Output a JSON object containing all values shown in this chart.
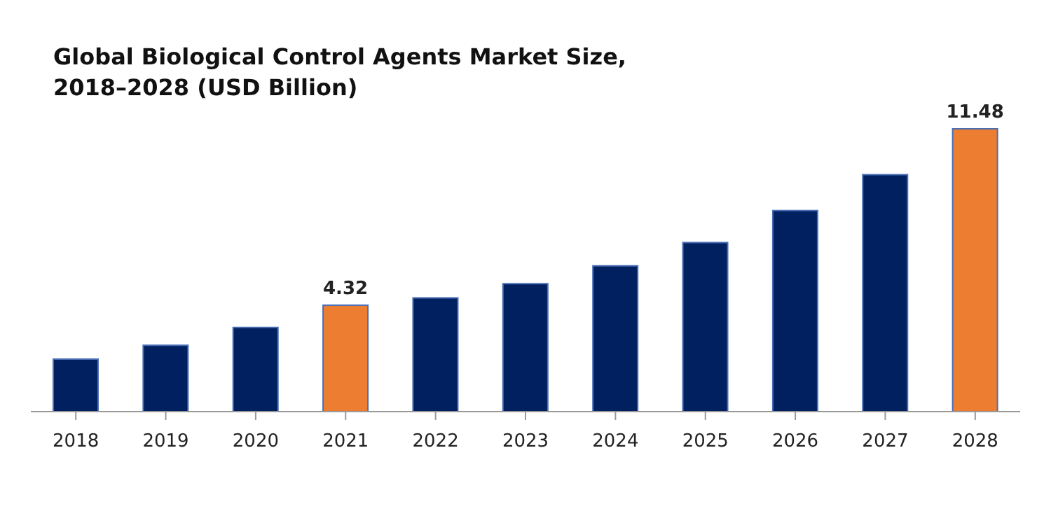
{
  "chart_data": {
    "type": "bar",
    "title": "Global Biological Control Agents Market Size, 2018–2028 (USD Billion)",
    "categories": [
      "2018",
      "2019",
      "2020",
      "2021",
      "2022",
      "2023",
      "2024",
      "2025",
      "2026",
      "2027",
      "2028"
    ],
    "values": [
      2.13,
      2.69,
      3.42,
      4.32,
      4.62,
      5.19,
      5.92,
      6.86,
      8.16,
      9.62,
      11.48
    ],
    "colors": [
      "#002060",
      "#002060",
      "#002060",
      "#ed7d31",
      "#002060",
      "#002060",
      "#002060",
      "#002060",
      "#002060",
      "#002060",
      "#ed7d31"
    ],
    "value_labels": [
      null,
      null,
      null,
      "4.32",
      null,
      null,
      null,
      null,
      null,
      null,
      "11.48"
    ],
    "grid": false,
    "legend": false
  }
}
